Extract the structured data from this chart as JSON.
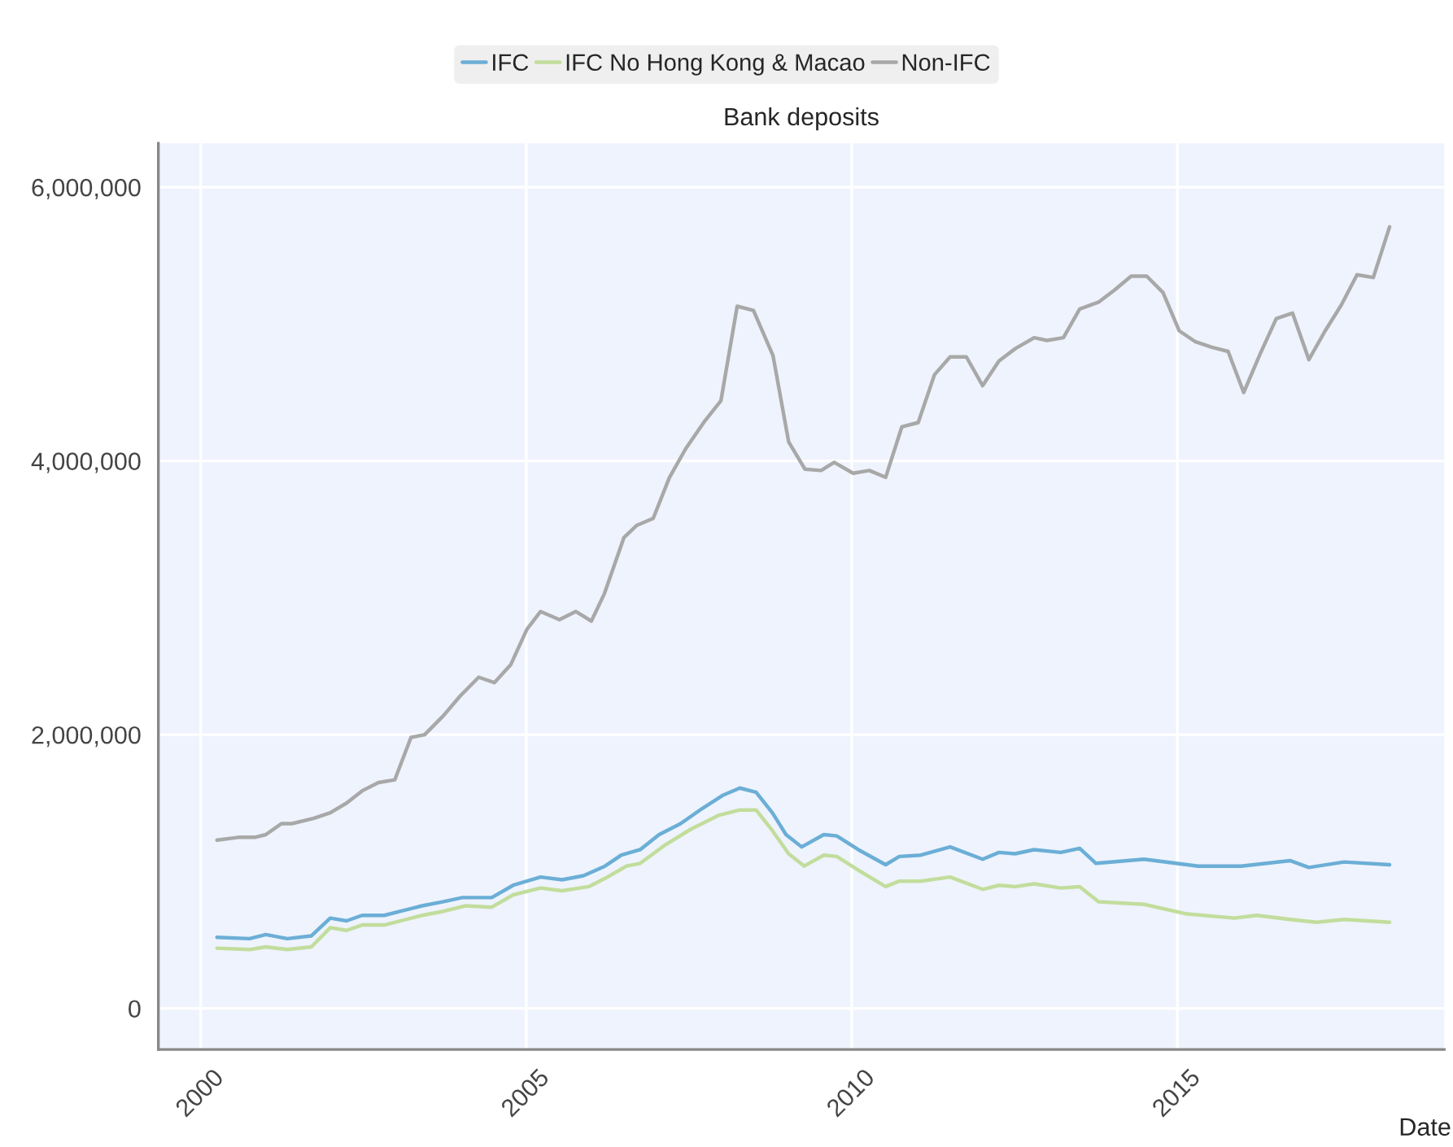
{
  "chart_data": {
    "type": "line",
    "title": "Bank deposits",
    "xlabel": "Date",
    "xlim": [
      1999.35,
      2019.1
    ],
    "ylim": [
      -300000,
      6320000
    ],
    "xticks": [
      2000,
      2005,
      2010,
      2015
    ],
    "yticks": [
      {
        "value": 0,
        "label": "0"
      },
      {
        "value": 2000000,
        "label": "2,000,000"
      },
      {
        "value": 4000000,
        "label": "4,000,000"
      },
      {
        "value": 6000000,
        "label": "6,000,000"
      }
    ],
    "grid": true,
    "legend": "top",
    "marker": "none",
    "line_style": "solid",
    "series": [
      {
        "name": "IFC",
        "color": "#6baed6",
        "x": [
          2000.25,
          2000.75,
          2001.0,
          2001.33,
          2001.7,
          2001.99,
          2002.24,
          2002.48,
          2002.82,
          2003.07,
          2003.4,
          2003.73,
          2004.02,
          2004.47,
          2004.8,
          2005.22,
          2005.55,
          2005.88,
          2006.21,
          2006.46,
          2006.75,
          2007.04,
          2007.37,
          2007.7,
          2008.03,
          2008.28,
          2008.53,
          2008.78,
          2008.99,
          2009.23,
          2009.57,
          2009.77,
          2010.1,
          2010.52,
          2010.73,
          2011.06,
          2011.51,
          2012.01,
          2012.26,
          2012.51,
          2012.8,
          2013.21,
          2013.5,
          2013.75,
          2014.49,
          2015.32,
          2015.98,
          2016.73,
          2017.02,
          2017.56,
          2018.26
        ],
        "values": [
          520000,
          510000,
          540000,
          510000,
          530000,
          660000,
          640000,
          680000,
          680000,
          710000,
          750000,
          780000,
          810000,
          810000,
          900000,
          960000,
          940000,
          970000,
          1040000,
          1120000,
          1160000,
          1270000,
          1350000,
          1460000,
          1560000,
          1610000,
          1580000,
          1430000,
          1270000,
          1180000,
          1270000,
          1260000,
          1160000,
          1050000,
          1110000,
          1120000,
          1180000,
          1090000,
          1140000,
          1130000,
          1160000,
          1140000,
          1170000,
          1060000,
          1090000,
          1040000,
          1040000,
          1080000,
          1030000,
          1070000,
          1050000
        ]
      },
      {
        "name": "IFC No Hong Kong & Macao",
        "color": "#c2dd9c",
        "x": [
          2000.25,
          2000.75,
          2001.0,
          2001.33,
          2001.7,
          2001.99,
          2002.24,
          2002.48,
          2002.82,
          2003.4,
          2003.73,
          2004.07,
          2004.47,
          2004.8,
          2005.22,
          2005.55,
          2005.96,
          2006.21,
          2006.54,
          2006.75,
          2007.12,
          2007.53,
          2007.95,
          2008.28,
          2008.53,
          2008.78,
          2009.03,
          2009.27,
          2009.57,
          2009.77,
          2010.1,
          2010.52,
          2010.73,
          2011.06,
          2011.51,
          2012.01,
          2012.26,
          2012.51,
          2012.8,
          2013.21,
          2013.5,
          2013.79,
          2014.49,
          2015.15,
          2015.88,
          2016.22,
          2016.73,
          2017.14,
          2017.56,
          2018.26
        ],
        "values": [
          440000,
          430000,
          450000,
          430000,
          450000,
          590000,
          570000,
          610000,
          610000,
          680000,
          710000,
          750000,
          740000,
          830000,
          880000,
          860000,
          890000,
          950000,
          1040000,
          1060000,
          1190000,
          1310000,
          1410000,
          1450000,
          1450000,
          1300000,
          1130000,
          1040000,
          1120000,
          1110000,
          1010000,
          890000,
          930000,
          930000,
          960000,
          870000,
          900000,
          890000,
          910000,
          880000,
          890000,
          780000,
          760000,
          690000,
          660000,
          680000,
          650000,
          630000,
          650000,
          630000
        ]
      },
      {
        "name": "Non-IFC",
        "color": "#a8a8a8",
        "x": [
          2000.25,
          2000.58,
          2000.83,
          2001.0,
          2001.24,
          2001.4,
          2001.74,
          2001.99,
          2002.24,
          2002.48,
          2002.73,
          2002.98,
          2003.23,
          2003.44,
          2003.73,
          2003.98,
          2004.27,
          2004.51,
          2004.76,
          2005.01,
          2005.22,
          2005.51,
          2005.76,
          2006.0,
          2006.2,
          2006.5,
          2006.7,
          2006.95,
          2007.2,
          2007.45,
          2007.74,
          2007.99,
          2008.24,
          2008.49,
          2008.79,
          2009.03,
          2009.28,
          2009.53,
          2009.73,
          2010.02,
          2010.27,
          2010.52,
          2010.77,
          2011.02,
          2011.27,
          2011.51,
          2011.76,
          2012.01,
          2012.26,
          2012.51,
          2012.8,
          2013.0,
          2013.25,
          2013.5,
          2013.79,
          2014.04,
          2014.29,
          2014.53,
          2014.78,
          2015.03,
          2015.28,
          2015.53,
          2015.78,
          2016.02,
          2016.27,
          2016.52,
          2016.77,
          2017.02,
          2017.27,
          2017.52,
          2017.76,
          2018.01,
          2018.26
        ],
        "values": [
          1230000,
          1250000,
          1250000,
          1270000,
          1350000,
          1350000,
          1390000,
          1430000,
          1500000,
          1590000,
          1650000,
          1670000,
          1980000,
          2000000,
          2140000,
          2280000,
          2420000,
          2380000,
          2510000,
          2770000,
          2900000,
          2840000,
          2900000,
          2830000,
          3030000,
          3440000,
          3530000,
          3580000,
          3880000,
          4090000,
          4290000,
          4440000,
          5130000,
          5100000,
          4770000,
          4140000,
          3940000,
          3930000,
          3990000,
          3910000,
          3930000,
          3880000,
          4250000,
          4280000,
          4630000,
          4760000,
          4760000,
          4550000,
          4730000,
          4820000,
          4900000,
          4880000,
          4900000,
          5110000,
          5160000,
          5250000,
          5350000,
          5350000,
          5230000,
          4950000,
          4870000,
          4830000,
          4800000,
          4500000,
          4780000,
          5040000,
          5080000,
          4740000,
          4950000,
          5140000,
          5360000,
          5340000,
          5710000
        ]
      }
    ]
  }
}
